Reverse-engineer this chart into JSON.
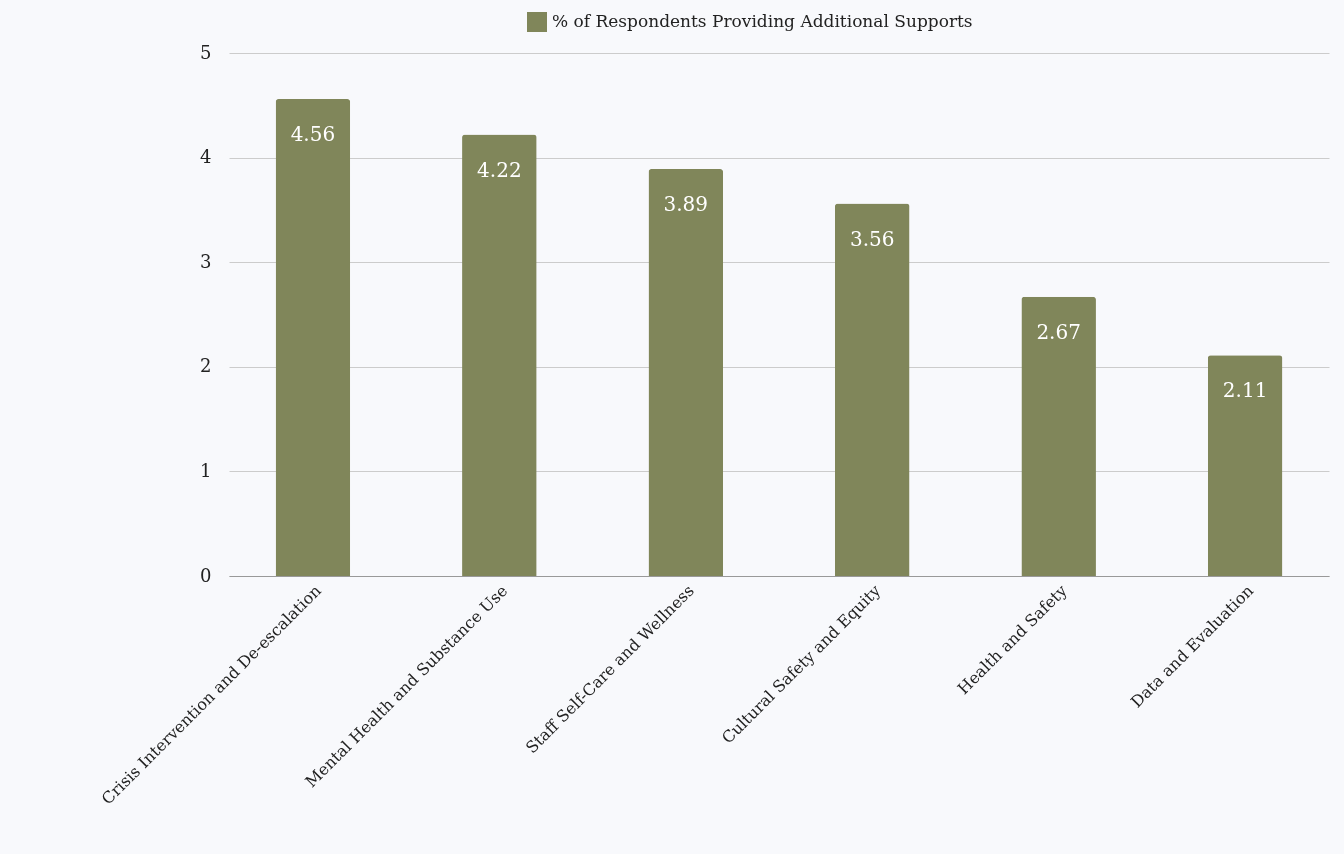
{
  "chart_data": {
    "type": "bar",
    "categories": [
      "Crisis Intervention and De-escalation",
      "Mental Health and Substance Use",
      "Staff Self-Care and Wellness",
      "Cultural Safety and Equity",
      "Health and Safety",
      "Data and Evaluation"
    ],
    "series": [
      {
        "name": "% of Respondents Providing Additional Supports",
        "color": "#80865a",
        "values": [
          4.56,
          4.22,
          3.89,
          3.56,
          2.67,
          2.11
        ]
      }
    ],
    "ylim": [
      0,
      5
    ],
    "yticks": [
      0,
      1,
      2,
      3,
      4,
      5
    ],
    "grid": "y",
    "legend": "top",
    "data_labels": true
  }
}
